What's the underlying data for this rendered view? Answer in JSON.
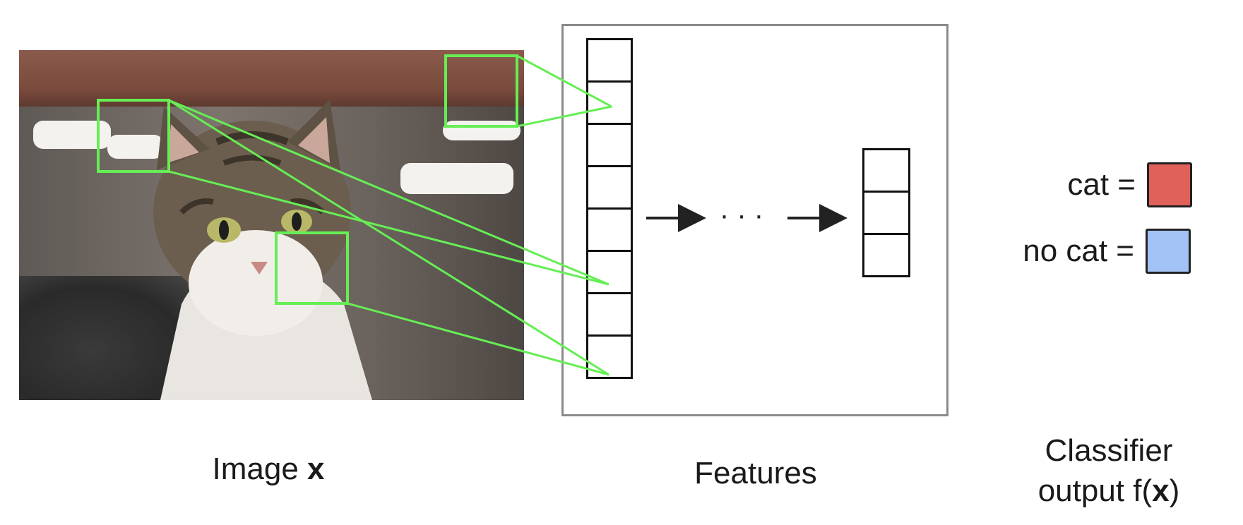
{
  "image_caption": {
    "text": "Image ",
    "var": "x"
  },
  "features_caption": "Features",
  "classifier_caption": {
    "line1": "Classifier",
    "line2_prefix": "output f(",
    "var": "x",
    "line2_suffix": ")"
  },
  "legend": [
    {
      "label": "cat =",
      "color": "#e0605a"
    },
    {
      "label": "no cat =",
      "color": "#a3c2f5"
    }
  ],
  "ellipsis": "· · ·",
  "feature_cells": 8,
  "output_cells": 3,
  "colors": {
    "highlight": "#66ee55",
    "frame": "#8a8a8a",
    "stroke": "#111111"
  }
}
